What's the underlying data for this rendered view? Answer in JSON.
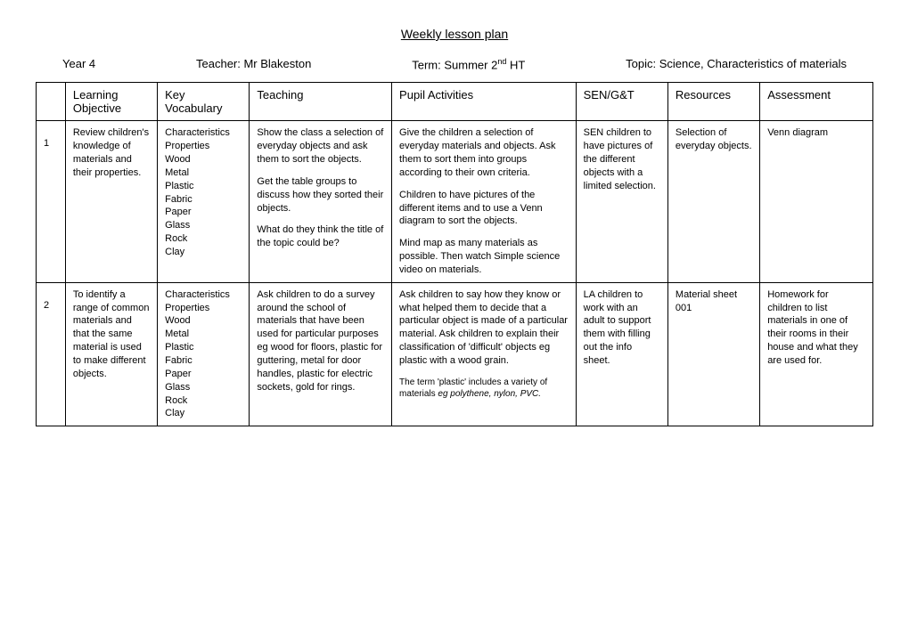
{
  "title": "Weekly lesson plan",
  "meta": {
    "year": "Year 4",
    "teacher_label": "Teacher: Mr Blakeston",
    "term_prefix": "Term: Summer 2",
    "term_suffix": " HT",
    "term_sup": "nd",
    "topic": "Topic: Science, Characteristics of materials"
  },
  "headers": [
    "",
    "Learning Objective",
    "Key Vocabulary",
    "Teaching",
    "Pupil Activities",
    "SEN/G&T",
    "Resources",
    "Assessment"
  ],
  "rows": [
    {
      "num": "1",
      "objective": "Review children's knowledge of materials and their properties.",
      "vocab": "Characteristics\nProperties\nWood\nMetal\nPlastic\nFabric\nPaper\nGlass\nRock\nClay",
      "teaching": [
        "Show the class a selection of everyday objects and ask them to sort the objects.",
        "Get the table groups to discuss how they sorted their objects.",
        "What do they think the title of the topic could be?"
      ],
      "activities": [
        "Give the children a selection of everyday materials and objects. Ask them to sort them into groups according to their own criteria.",
        "Children to have pictures of the different items and to use a Venn diagram to sort the objects.",
        "Mind map as many materials as possible. Then watch Simple science video on materials."
      ],
      "sen": "SEN children to have pictures of the different objects with a limited selection.",
      "resources": "Selection of everyday objects.",
      "assessment": "Venn diagram"
    },
    {
      "num": "2",
      "objective": "To identify a range of common materials and that the same material is used to make different objects.",
      "vocab": "Characteristics\nProperties\nWood\nMetal\nPlastic\nFabric\nPaper\nGlass\nRock\nClay",
      "teaching": [
        "Ask children to do a survey around the school of materials that have been used for particular purposes eg wood for floors, plastic for guttering, metal for door handles, plastic for electric sockets, gold for rings."
      ],
      "activities_main": "Ask children to say how they know or what helped them to decide that a particular object is made of a particular material. Ask children to explain their classification of 'difficult' objects eg plastic with a wood grain.",
      "activities_fine_a": "The term 'plastic' includes a variety of materials ",
      "activities_fine_b": "eg polythene, nylon, PVC.",
      "sen": "LA children to work with an adult to support them with filling out the info sheet.",
      "resources": "Material sheet 001",
      "assessment": "Homework for children to list materials in one of their rooms in their house and what they are used for."
    }
  ]
}
